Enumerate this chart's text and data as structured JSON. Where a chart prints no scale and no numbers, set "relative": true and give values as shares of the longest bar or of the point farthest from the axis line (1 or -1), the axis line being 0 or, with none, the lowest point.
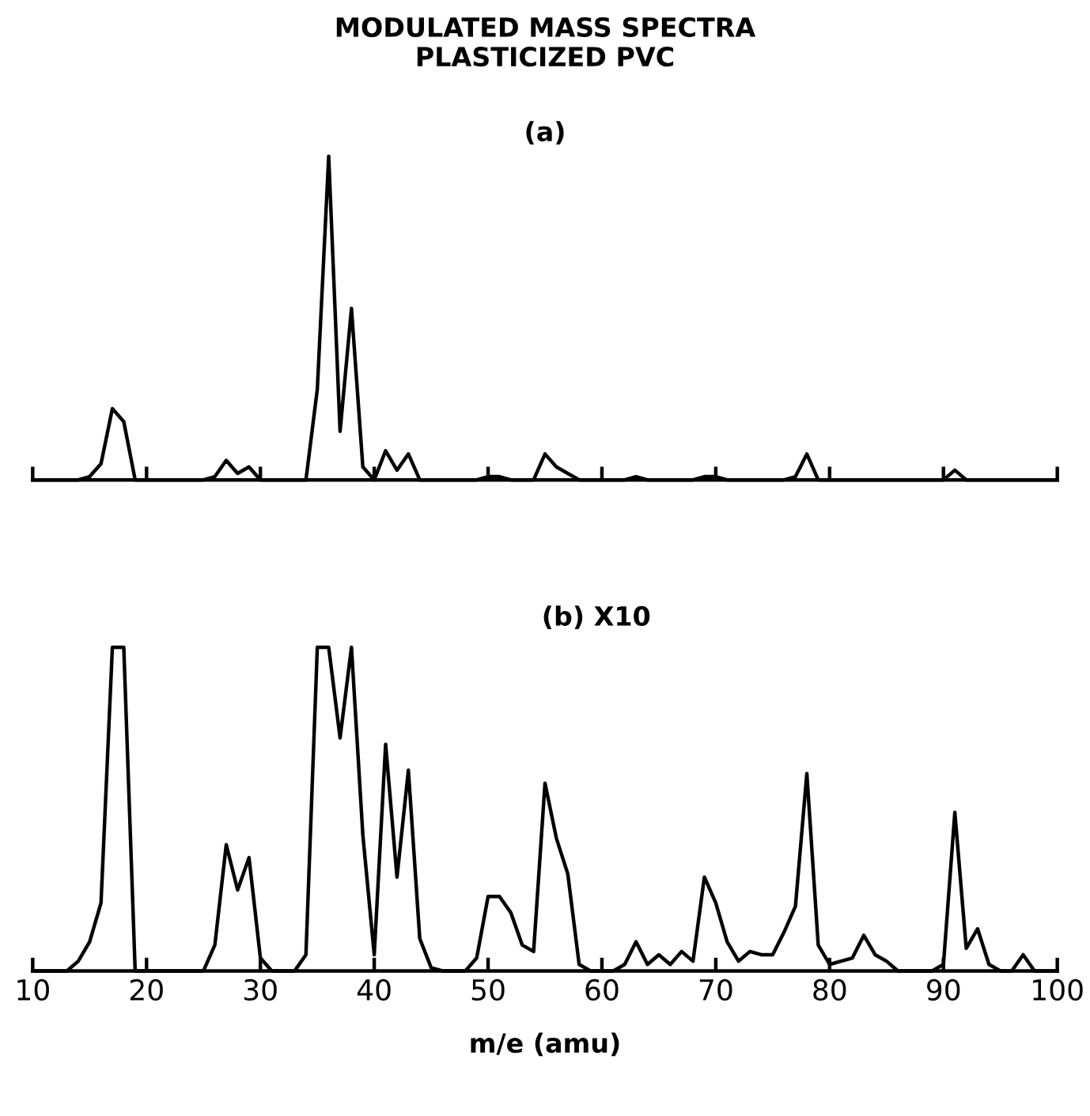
{
  "chart_data": [
    {
      "type": "line",
      "title": "MODULATED MASS SPECTRA\nPLASTICIZED PVC",
      "subtitle": "(a)",
      "relative": true,
      "marker": "none",
      "line_style": "solid",
      "grid": false,
      "legend": false,
      "tick_labels": false,
      "x": [
        10,
        11,
        12,
        13,
        14,
        15,
        16,
        17,
        18,
        19,
        20,
        21,
        22,
        23,
        24,
        25,
        26,
        27,
        28,
        29,
        30,
        31,
        32,
        33,
        34,
        35,
        36,
        37,
        38,
        39,
        40,
        41,
        42,
        43,
        44,
        45,
        46,
        47,
        48,
        49,
        50,
        51,
        52,
        53,
        54,
        55,
        56,
        57,
        58,
        59,
        60,
        61,
        62,
        63,
        64,
        65,
        66,
        67,
        68,
        69,
        70,
        71,
        72,
        73,
        74,
        75,
        76,
        77,
        78,
        79,
        80,
        81,
        82,
        83,
        84,
        85,
        86,
        87,
        88,
        89,
        90,
        91,
        92,
        93,
        94,
        95,
        96,
        97,
        98,
        99,
        100
      ],
      "series": [
        {
          "color": "#000000",
          "values": [
            0,
            0,
            0,
            0,
            0,
            0.01,
            0.05,
            0.22,
            0.18,
            0,
            0,
            0,
            0,
            0,
            0,
            0,
            0.01,
            0.06,
            0.02,
            0.04,
            0,
            0,
            0,
            0,
            0,
            0.28,
            1,
            0.15,
            0.53,
            0.04,
            0,
            0.09,
            0.03,
            0.08,
            0,
            0,
            0,
            0,
            0,
            0,
            0.01,
            0.01,
            0,
            0,
            0,
            0.08,
            0.04,
            0.02,
            0,
            0,
            0,
            0,
            0,
            0.01,
            0,
            0,
            0,
            0,
            0,
            0.01,
            0.01,
            0,
            0,
            0,
            0,
            0,
            0,
            0.01,
            0.08,
            0,
            0,
            0,
            0,
            0,
            0,
            0,
            0,
            0,
            0,
            0,
            0,
            0.03,
            0,
            0,
            0,
            0,
            0,
            0,
            0,
            0,
            0
          ]
        }
      ],
      "xlim": [
        10,
        100
      ],
      "xticks": [
        {
          "value": 10,
          "label": null
        },
        {
          "value": 20,
          "label": null
        },
        {
          "value": 30,
          "label": null
        },
        {
          "value": 40,
          "label": null
        },
        {
          "value": 50,
          "label": null
        },
        {
          "value": 60,
          "label": null
        },
        {
          "value": 70,
          "label": null
        },
        {
          "value": 80,
          "label": null
        },
        {
          "value": 90,
          "label": null
        },
        {
          "value": 100,
          "label": null
        }
      ]
    },
    {
      "type": "line",
      "title": "(b) X10",
      "xlabel": "m/e (amu)",
      "relative": true,
      "marker": "none",
      "line_style": "solid",
      "grid": false,
      "legend": false,
      "tick_labels": "x",
      "x": [
        10,
        11,
        12,
        13,
        14,
        15,
        16,
        17,
        18,
        19,
        20,
        21,
        22,
        23,
        24,
        25,
        26,
        27,
        28,
        29,
        30,
        31,
        32,
        33,
        34,
        35,
        36,
        37,
        38,
        39,
        40,
        41,
        42,
        43,
        44,
        45,
        46,
        47,
        48,
        49,
        50,
        51,
        52,
        53,
        54,
        55,
        56,
        57,
        58,
        59,
        60,
        61,
        62,
        63,
        64,
        65,
        66,
        67,
        68,
        69,
        70,
        71,
        72,
        73,
        74,
        75,
        76,
        77,
        78,
        79,
        80,
        81,
        82,
        83,
        84,
        85,
        86,
        87,
        88,
        89,
        90,
        91,
        92,
        93,
        94,
        95,
        96,
        97,
        98,
        99,
        100
      ],
      "series": [
        {
          "color": "#000000",
          "values": [
            0,
            0,
            0,
            0,
            0.03,
            0.09,
            0.21,
            1,
            1,
            0,
            0,
            0,
            0,
            0,
            0,
            0,
            0.08,
            0.39,
            0.25,
            0.35,
            0.04,
            0,
            0,
            0,
            0.05,
            1,
            1,
            0.72,
            1,
            0.42,
            0.05,
            0.7,
            0.29,
            0.62,
            0.1,
            0.01,
            0,
            0,
            0,
            0.04,
            0.23,
            0.23,
            0.18,
            0.08,
            0.06,
            0.58,
            0.41,
            0.3,
            0.02,
            0,
            0,
            0,
            0.02,
            0.09,
            0.02,
            0.05,
            0.02,
            0.06,
            0.03,
            0.29,
            0.21,
            0.09,
            0.03,
            0.06,
            0.05,
            0.05,
            0.12,
            0.2,
            0.61,
            0.08,
            0.02,
            0.03,
            0.04,
            0.11,
            0.05,
            0.03,
            0,
            0,
            0,
            0,
            0.02,
            0.49,
            0.07,
            0.13,
            0.02,
            0,
            0,
            0.05,
            0,
            0,
            0
          ]
        }
      ],
      "xlim": [
        10,
        100
      ],
      "xticks": [
        10,
        20,
        30,
        40,
        50,
        60,
        70,
        80,
        90,
        100
      ]
    }
  ]
}
